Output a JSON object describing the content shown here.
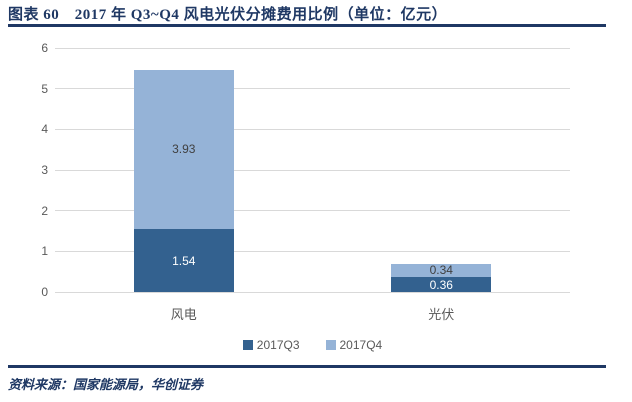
{
  "header": {
    "title": "图表 60　2017 年 Q3~Q4 风电光伏分摊费用比例（单位：亿元）"
  },
  "footer": {
    "source": "资料来源：国家能源局，华创证券"
  },
  "colors": {
    "navy_accent": "#1F3864",
    "dark_blue_series": "#33618F",
    "light_blue_series": "#95B3D7",
    "gridline": "#D9D9D9",
    "axis_text": "#595959",
    "label_on_light": "#404040",
    "label_on_dark": "#FFFFFF"
  },
  "chart_data": {
    "type": "bar",
    "stacked": true,
    "categories": [
      "风电",
      "光伏"
    ],
    "series": [
      {
        "name": "2017Q3",
        "values": [
          1.54,
          0.36
        ],
        "color": "#33618F",
        "label_color": "#FFFFFF"
      },
      {
        "name": "2017Q4",
        "values": [
          3.93,
          0.34
        ],
        "color": "#95B3D7",
        "label_color": "#404040"
      }
    ],
    "totals": [
      5.47,
      0.7
    ],
    "title": "2017 年 Q3~Q4 风电光伏分摊费用比例（单位：亿元）",
    "xlabel": "",
    "ylabel": "",
    "ylim": [
      0,
      6
    ],
    "yticks": [
      0,
      1,
      2,
      3,
      4,
      5,
      6
    ],
    "grid": true,
    "legend_position": "bottom"
  }
}
